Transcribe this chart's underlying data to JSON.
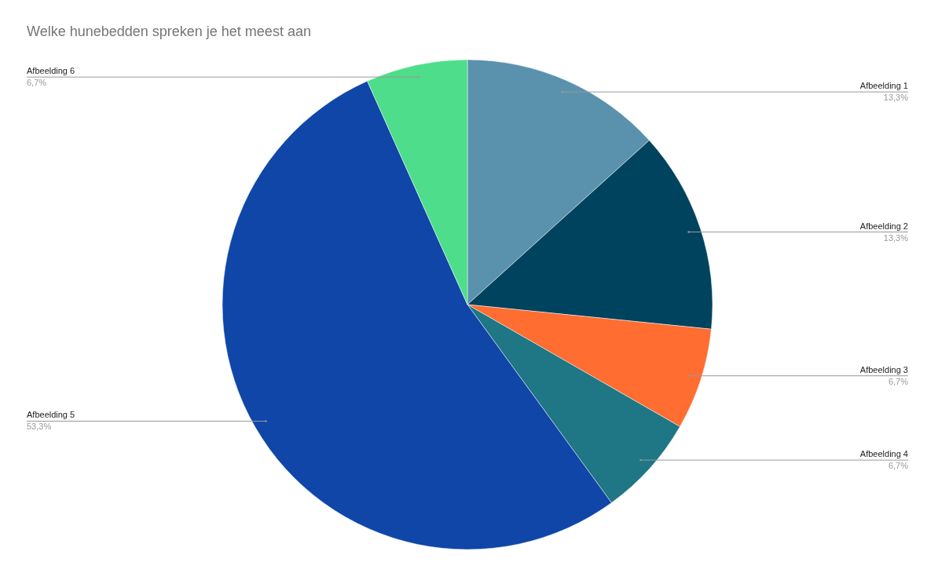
{
  "chart_data": {
    "type": "pie",
    "title": "Welke hunebedden spreken je het meest aan",
    "categories": [
      "Afbeelding 1",
      "Afbeelding 2",
      "Afbeelding 3",
      "Afbeelding 4",
      "Afbeelding 5",
      "Afbeelding 6"
    ],
    "values": [
      13.3,
      13.3,
      6.7,
      6.7,
      53.3,
      6.7
    ],
    "colors": [
      "#5a92ae",
      "#00435e",
      "#ff6d31",
      "#1f7685",
      "#0f46a8",
      "#4edd8a"
    ],
    "value_labels": [
      "13,3%",
      "13,3%",
      "6,7%",
      "6,7%",
      "53,3%",
      "6,7%"
    ],
    "legend": false
  }
}
